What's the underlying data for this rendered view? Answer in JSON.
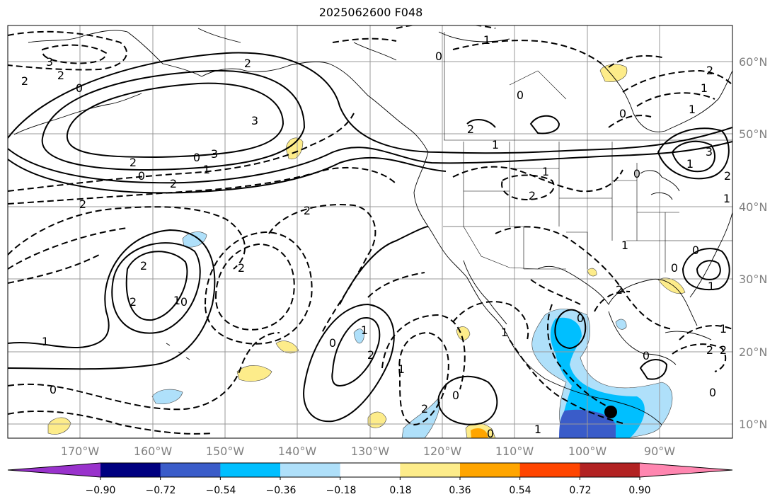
{
  "title": "2025062600 F048",
  "map": {
    "projection": "PlateCarree",
    "lon_range": [
      180,
      80
    ],
    "lat_range": [
      8,
      65
    ],
    "gridlines": true
  },
  "lon_ticks": [
    "170°W",
    "160°W",
    "150°W",
    "140°W",
    "130°W",
    "120°W",
    "110°W",
    "100°W",
    "90°W"
  ],
  "lat_ticks": [
    "60°N",
    "50°N",
    "40°N",
    "30°N",
    "20°N",
    "10°N"
  ],
  "colorbar": {
    "orientation": "horizontal",
    "extend": "both",
    "colors": [
      "#9932cc",
      "#000080",
      "#3a5cc9",
      "#00bfff",
      "#afe0fa",
      "#ffffff",
      "#fdec8a",
      "#ffa500",
      "#ff4500",
      "#b22222",
      "#ff86b0"
    ],
    "tick_labels": [
      "−0.90",
      "−0.72",
      "−0.54",
      "−0.36",
      "−0.18",
      "0.18",
      "0.36",
      "0.54",
      "0.72",
      "0.90"
    ]
  },
  "contour_labels": [
    "2",
    "3",
    "2",
    "0",
    "3",
    "2",
    "2",
    "0",
    "2",
    "1",
    "3",
    "0",
    "0",
    "2",
    "1",
    "2",
    "2",
    "2",
    "1",
    "2",
    "0",
    "2",
    "1",
    "0",
    "2",
    "1",
    "2",
    "1",
    "0",
    "0",
    "2",
    "1",
    "0",
    "1",
    "0",
    "1",
    "0",
    "1",
    "0",
    "0",
    "2",
    "0",
    "1",
    "1",
    "3",
    "2",
    "1",
    "1",
    "1",
    "2",
    "1",
    "0",
    "0",
    "2",
    "1",
    "0",
    "2"
  ],
  "markers": [
    {
      "label": "storm-center",
      "lon": -96.5,
      "lat": 11.5
    }
  ]
}
